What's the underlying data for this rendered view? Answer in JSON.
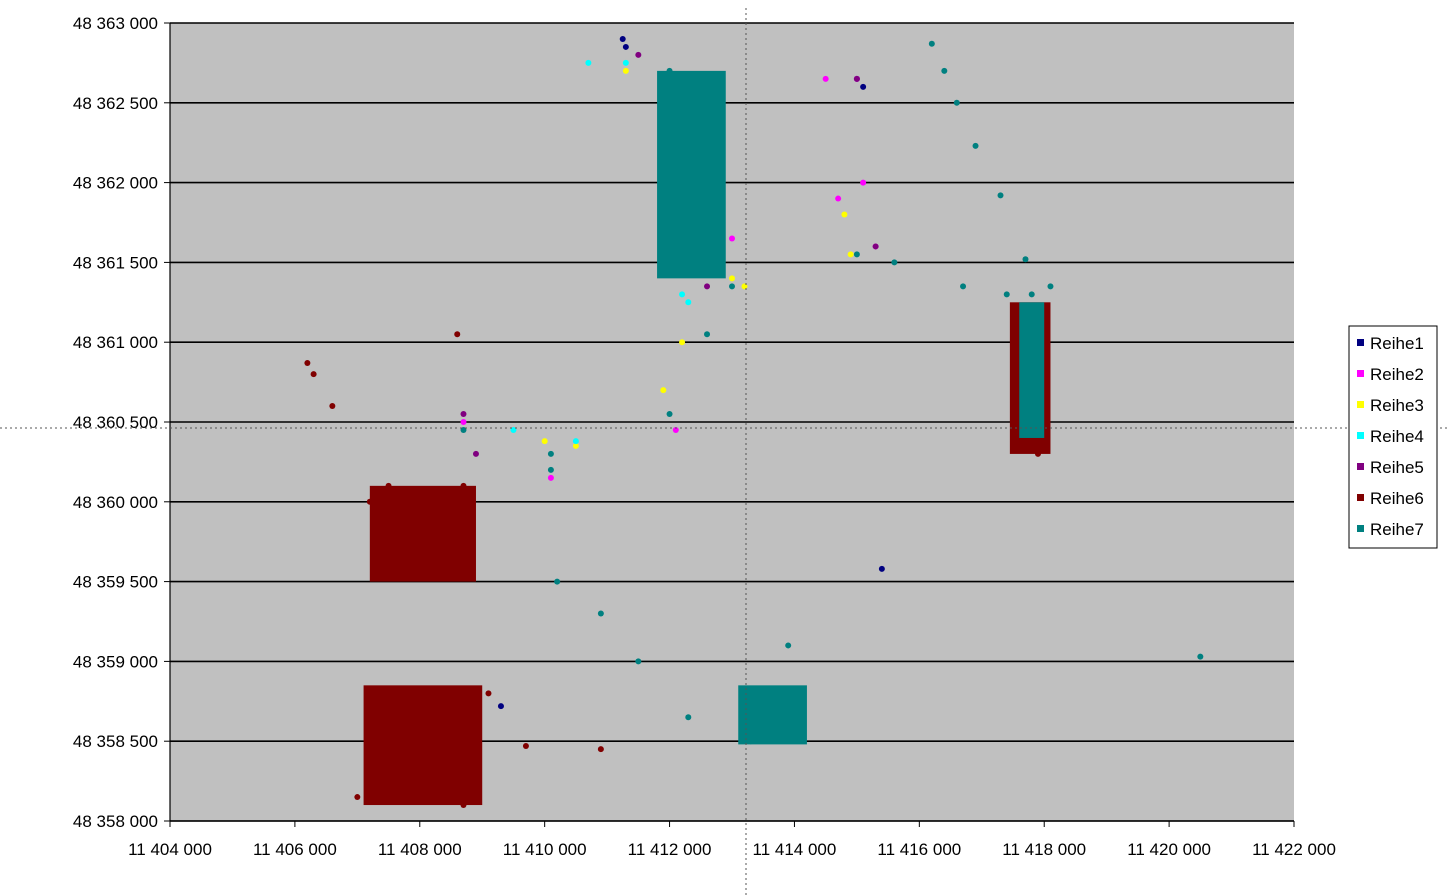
{
  "chart_data": {
    "type": "scatter",
    "title": "",
    "xlabel": "",
    "ylabel": "",
    "xlim": [
      11404000,
      11422000
    ],
    "ylim": [
      48358000,
      48363000
    ],
    "grid": "horizontal",
    "legend_position": "right",
    "x_ticks": [
      11404000,
      11406000,
      11408000,
      11410000,
      11412000,
      11414000,
      11416000,
      11418000,
      11420000,
      11422000
    ],
    "x_tick_labels": [
      "11 404 000",
      "11 406 000",
      "11 408 000",
      "11 410 000",
      "11 412 000",
      "11 414 000",
      "11 416 000",
      "11 418 000",
      "11 420 000",
      "11 422 000"
    ],
    "y_ticks": [
      48358000,
      48358500,
      48359000,
      48359500,
      48360000,
      48360500,
      48361000,
      48361500,
      48362000,
      48362500,
      48363000
    ],
    "y_tick_labels": [
      "48 358 000",
      "48 358 500",
      "48 359 000",
      "48 359 500",
      "48 360 000",
      "48 360 500",
      "48 361 000",
      "48 361 500",
      "48 362 000",
      "48 362 500",
      "48 363 000"
    ],
    "series": [
      {
        "name": "Reihe1",
        "color": "#000080",
        "marker": "dot",
        "x": [
          11411250,
          11411300,
          11412350,
          11415000,
          11415100,
          11415400,
          11409300
        ],
        "y": [
          48362900,
          48362850,
          48361480,
          48362650,
          48362600,
          48359580,
          48358720
        ]
      },
      {
        "name": "Reihe2",
        "color": "#ff00ff",
        "marker": "square",
        "x": [
          11414500,
          11415000,
          11415100,
          11415300,
          11413000,
          11414700,
          11408700,
          11410100,
          11412100
        ],
        "y": [
          48362650,
          48362650,
          48362000,
          48361600,
          48361650,
          48361900,
          48360500,
          48360150,
          48360450
        ]
      },
      {
        "name": "Reihe3",
        "color": "#ffff00",
        "marker": "triangle",
        "x": [
          11411300,
          11412200,
          11413000,
          11414800,
          11413200,
          11414900,
          11410000,
          11410500,
          11411900
        ],
        "y": [
          48362700,
          48361000,
          48361400,
          48361800,
          48361350,
          48361550,
          48360380,
          48360350,
          48360700
        ]
      },
      {
        "name": "Reihe4",
        "color": "#00ffff",
        "marker": "cross",
        "x": [
          11410700,
          11411300,
          11412200,
          11412300,
          11409500,
          11410500
        ],
        "y": [
          48362750,
          48362750,
          48361300,
          48361250,
          48360450,
          48360380
        ]
      },
      {
        "name": "Reihe5",
        "color": "#800080",
        "marker": "star",
        "x": [
          11411500,
          11412600,
          11415000,
          11415300,
          11408700,
          11408900
        ],
        "y": [
          48362800,
          48361350,
          48362650,
          48361600,
          48360550,
          48360300
        ]
      },
      {
        "name": "Reihe6",
        "color": "#800000",
        "marker": "circle",
        "x": [
          11406200,
          11406300,
          11406600,
          11408600,
          11408700,
          11407500,
          11407200,
          11407000,
          11408700,
          11407200,
          11407300,
          11408600,
          11409100,
          11409700,
          11410900,
          11417600,
          11417900
        ],
        "y": [
          48360870,
          48360800,
          48360600,
          48361050,
          48360100,
          48360100,
          48360000,
          48358150,
          48358100,
          48358500,
          48358800,
          48358600,
          48358800,
          48358470,
          48358450,
          48361200,
          48360300
        ],
        "rects": [
          [
            11407200,
            48359500,
            11408900,
            48360100
          ],
          [
            11407100,
            48358100,
            11409000,
            48358850
          ],
          [
            11417450,
            48360300,
            11418100,
            48361250
          ]
        ]
      },
      {
        "name": "Reihe7",
        "color": "#008080",
        "marker": "plus",
        "x": [
          11408700,
          11410100,
          11412000,
          11412600,
          11413000,
          11415000,
          11415600,
          11416700,
          11417400,
          11417800,
          11410100,
          11410200,
          11410900,
          11411500,
          11412300,
          11413300,
          11414100,
          11413900,
          11416200,
          11416400,
          11416600,
          11416900,
          11417300,
          11417700,
          11418100,
          11420500,
          11412000,
          11412600
        ],
        "y": [
          48360450,
          48360300,
          48360550,
          48361050,
          48361350,
          48361550,
          48361500,
          48361350,
          48361300,
          48361300,
          48360200,
          48359500,
          48359300,
          48359000,
          48358650,
          48358500,
          48358680,
          48359100,
          48362870,
          48362700,
          48362500,
          48362230,
          48361920,
          48361520,
          48361350,
          48359030,
          48362700,
          48361500
        ],
        "rects": [
          [
            11411800,
            48361400,
            11412900,
            48362700
          ],
          [
            11413100,
            48358480,
            11414200,
            48358850
          ],
          [
            11417600,
            48360400,
            11418000,
            48361250
          ]
        ]
      }
    ]
  }
}
